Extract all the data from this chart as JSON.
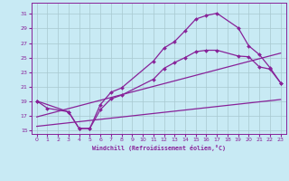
{
  "xlabel": "Windchill (Refroidissement éolien,°C)",
  "background_color": "#c8eaf4",
  "grid_color": "#a8c8d0",
  "line_color": "#882299",
  "xlim": [
    -0.5,
    23.5
  ],
  "ylim": [
    14.5,
    32.5
  ],
  "yticks": [
    15,
    17,
    19,
    21,
    23,
    25,
    27,
    29,
    31
  ],
  "xticks": [
    0,
    1,
    2,
    3,
    4,
    5,
    6,
    7,
    8,
    9,
    10,
    11,
    12,
    13,
    14,
    15,
    16,
    17,
    18,
    19,
    20,
    21,
    22,
    23
  ],
  "curve1_x": [
    0,
    1,
    3,
    4,
    5,
    6,
    7,
    8,
    11,
    12,
    13,
    14,
    15,
    16,
    17,
    19,
    20,
    21,
    22,
    23
  ],
  "curve1_y": [
    19.0,
    18.0,
    17.5,
    15.2,
    15.2,
    18.5,
    20.2,
    20.8,
    24.5,
    26.3,
    27.2,
    28.7,
    30.3,
    30.8,
    31.1,
    29.1,
    26.6,
    25.4,
    23.6,
    21.5
  ],
  "curve2_x": [
    0,
    3,
    4,
    5,
    6,
    7,
    8,
    11,
    12,
    13,
    14,
    15,
    16,
    17,
    19,
    20,
    21,
    22,
    23
  ],
  "curve2_y": [
    19.0,
    17.5,
    15.2,
    15.2,
    17.8,
    19.3,
    19.8,
    22.0,
    23.5,
    24.3,
    25.0,
    25.8,
    26.0,
    26.0,
    25.2,
    25.1,
    23.7,
    23.4,
    21.5
  ],
  "line1_x": [
    0,
    4,
    23
  ],
  "line1_y": [
    19.0,
    15.2,
    19.2
  ],
  "line2_x": [
    0,
    4,
    23
  ],
  "line2_y": [
    19.0,
    15.2,
    25.5
  ]
}
